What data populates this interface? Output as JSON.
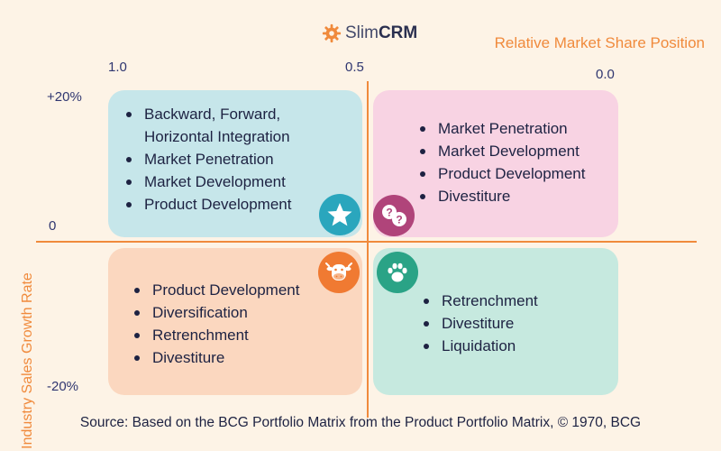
{
  "logo": {
    "slim": "Slim",
    "crm": "CRM"
  },
  "axes": {
    "x_title": "Relative Market Share Position",
    "y_title": "Industry Sales Growth Rate",
    "x_ticks": [
      "1.0",
      "0.5",
      "0.0"
    ],
    "y_ticks": [
      "+20%",
      "0",
      "-20%"
    ]
  },
  "quadrants": {
    "stars": {
      "icon": "star-icon",
      "color": "#c6e6ea",
      "items": [
        "Backward, Forward, Horizontal Integration",
        "Market Penetration",
        "Market Development",
        "Product Development"
      ]
    },
    "question_marks": {
      "icon": "question-marks-icon",
      "color": "#f8d3e3",
      "items": [
        "Market Penetration",
        "Market Development",
        "Product Development",
        "Divestiture"
      ]
    },
    "cash_cows": {
      "icon": "cow-icon",
      "color": "#fbd7bf",
      "items": [
        "Product Development",
        "Diversification",
        "Retrenchment",
        "Divestiture"
      ]
    },
    "dogs": {
      "icon": "paw-icon",
      "color": "#c6e9df",
      "items": [
        "Retrenchment",
        "Divestiture",
        "Liquidation"
      ]
    }
  },
  "source": "Source: Based on the BCG Portfolio Matrix from the Product Portfolio Matrix, © 1970, BCG",
  "colors": {
    "accent": "#f08a3c",
    "text": "#1d2242",
    "background": "#fdf3e6"
  }
}
